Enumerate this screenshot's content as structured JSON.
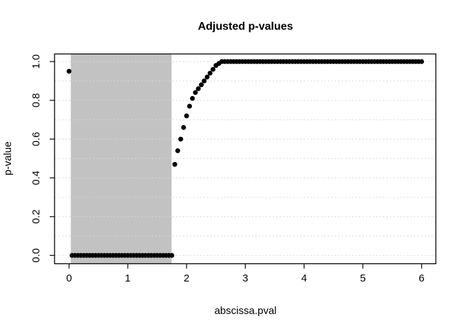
{
  "chart_data": {
    "type": "scatter",
    "title": "Adjusted p-values",
    "xlabel": "abscissa.pval",
    "ylabel": "p-value",
    "xlim": [
      0,
      6
    ],
    "ylim": [
      0,
      1
    ],
    "legend": "none",
    "point_color": "#000000",
    "background_color": "#ffffff",
    "x_ticks": {
      "values": [
        0,
        1,
        2,
        3,
        4,
        5,
        6
      ],
      "labels": [
        "0",
        "1",
        "2",
        "3",
        "4",
        "5",
        "6"
      ]
    },
    "y_ticks": {
      "values": [
        0,
        0.2,
        0.4,
        0.6,
        0.8,
        1.0
      ],
      "labels": [
        "0.0",
        "0.2",
        "0.4",
        "0.6",
        "0.8",
        "1.0"
      ]
    },
    "grid": {
      "orientation": "horizontal",
      "style": "dotted",
      "color": "#d8d8d8",
      "values": [
        0,
        0.1,
        0.2,
        0.3,
        0.4,
        0.5,
        0.6,
        0.7,
        0.8,
        0.9,
        1.0
      ]
    },
    "shaded_region": {
      "x_from": 0.03,
      "x_to": 1.745,
      "y_from": -0.04,
      "y_to": 1.04,
      "color": "#c2c2c2"
    },
    "series": [
      {
        "name": "adjusted p-values",
        "x": [
          0,
          0.05,
          0.1,
          0.15,
          0.2,
          0.25,
          0.3,
          0.35,
          0.4,
          0.45,
          0.5,
          0.55,
          0.6,
          0.65,
          0.7,
          0.75,
          0.8,
          0.85,
          0.9,
          0.95,
          1,
          1.05,
          1.1,
          1.15,
          1.2,
          1.25,
          1.3,
          1.35,
          1.4,
          1.45,
          1.5,
          1.55,
          1.6,
          1.65,
          1.7,
          1.75,
          1.8,
          1.85,
          1.9,
          1.95,
          2,
          2.05,
          2.1,
          2.15,
          2.2,
          2.25,
          2.3,
          2.35,
          2.4,
          2.45,
          2.5,
          2.55,
          2.6,
          2.65,
          2.7,
          2.75,
          2.8,
          2.85,
          2.9,
          2.95,
          3,
          3.05,
          3.1,
          3.15,
          3.2,
          3.25,
          3.3,
          3.35,
          3.4,
          3.45,
          3.5,
          3.55,
          3.6,
          3.65,
          3.7,
          3.75,
          3.8,
          3.85,
          3.9,
          3.95,
          4,
          4.05,
          4.1,
          4.15,
          4.2,
          4.25,
          4.3,
          4.35,
          4.4,
          4.45,
          4.5,
          4.55,
          4.6,
          4.65,
          4.7,
          4.75,
          4.8,
          4.85,
          4.9,
          4.95,
          5,
          5.05,
          5.1,
          5.15,
          5.2,
          5.25,
          5.3,
          5.35,
          5.4,
          5.45,
          5.5,
          5.55,
          5.6,
          5.65,
          5.7,
          5.75,
          5.8,
          5.85,
          5.9,
          5.95,
          6
        ],
        "y": [
          0.95,
          0,
          0,
          0,
          0,
          0,
          0,
          0,
          0,
          0,
          0,
          0,
          0,
          0,
          0,
          0,
          0,
          0,
          0,
          0,
          0,
          0,
          0,
          0,
          0,
          0,
          0,
          0,
          0,
          0,
          0,
          0,
          0,
          0,
          0,
          0,
          0.47,
          0.54,
          0.6,
          0.66,
          0.72,
          0.77,
          0.81,
          0.84,
          0.86,
          0.88,
          0.9,
          0.92,
          0.94,
          0.96,
          0.98,
          0.99,
          1,
          1,
          1,
          1,
          1,
          1,
          1,
          1,
          1,
          1,
          1,
          1,
          1,
          1,
          1,
          1,
          1,
          1,
          1,
          1,
          1,
          1,
          1,
          1,
          1,
          1,
          1,
          1,
          1,
          1,
          1,
          1,
          1,
          1,
          1,
          1,
          1,
          1,
          1,
          1,
          1,
          1,
          1,
          1,
          1,
          1,
          1,
          1,
          1,
          1,
          1,
          1,
          1,
          1,
          1,
          1,
          1,
          1,
          1,
          1,
          1,
          1,
          1,
          1,
          1,
          1,
          1,
          1,
          1
        ]
      }
    ]
  }
}
